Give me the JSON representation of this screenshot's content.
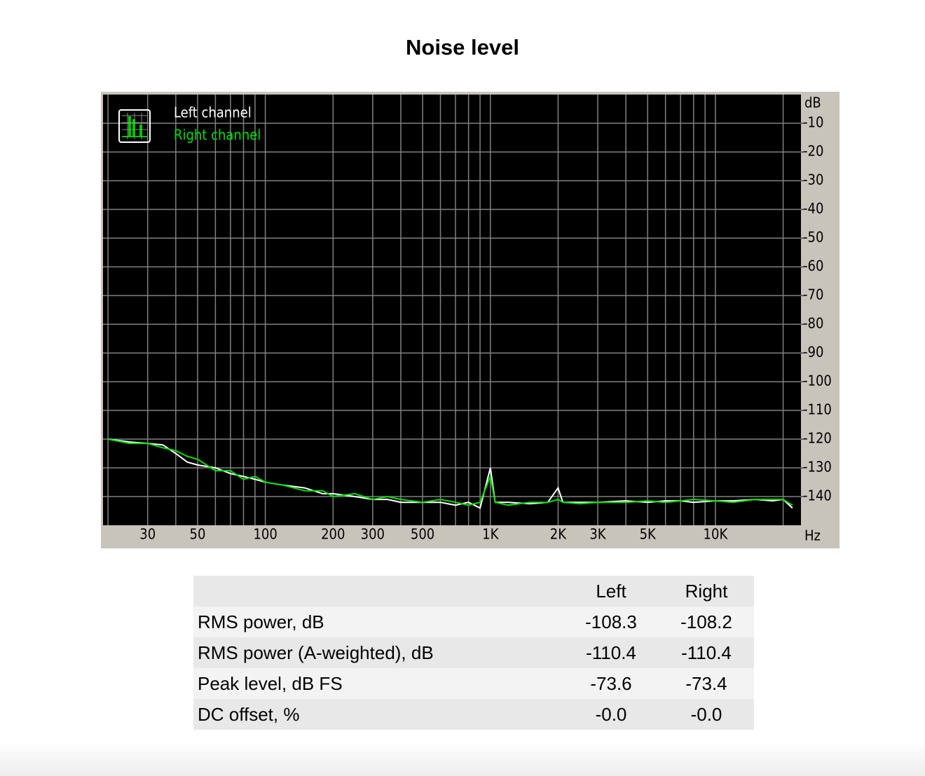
{
  "chart_data": {
    "type": "line",
    "title": "Noise level",
    "x_label": "Hz",
    "y_label": "dB",
    "log_x": true,
    "grid": true,
    "legend": "top-left",
    "background": "#000000",
    "xlim": [
      19,
      24000
    ],
    "ylim": [
      -150,
      0
    ],
    "xticks": [
      30,
      50,
      100,
      200,
      300,
      500,
      {
        "value": 1000,
        "label": "1K"
      },
      {
        "value": 2000,
        "label": "2K"
      },
      {
        "value": 3000,
        "label": "3K"
      },
      {
        "value": 5000,
        "label": "5K"
      },
      {
        "value": 10000,
        "label": "10K"
      }
    ],
    "xgrid_minor": [
      20,
      40,
      60,
      70,
      80,
      90,
      400,
      600,
      700,
      800,
      900,
      4000,
      6000,
      7000,
      8000,
      9000,
      20000
    ],
    "yticks": [
      -10,
      -20,
      -30,
      -40,
      -50,
      -60,
      -70,
      -80,
      -90,
      -100,
      -110,
      -120,
      -130,
      -140
    ],
    "x": [
      20,
      25,
      30,
      35,
      40,
      45,
      50,
      60,
      70,
      80,
      90,
      100,
      120,
      150,
      180,
      200,
      250,
      300,
      350,
      400,
      500,
      600,
      700,
      800,
      900,
      1000,
      1050,
      1200,
      1500,
      1800,
      2000,
      2100,
      2500,
      3000,
      4000,
      5000,
      6000,
      7000,
      8000,
      10000,
      12000,
      15000,
      18000,
      20000,
      22000
    ],
    "series": [
      {
        "name": "Left channel",
        "color": "#ffffff",
        "values": [
          -120,
          -121,
          -121.5,
          -122,
          -125,
          -128,
          -129,
          -130,
          -132,
          -133,
          -134,
          -135,
          -136,
          -137,
          -139,
          -139,
          -140,
          -141,
          -141,
          -142,
          -142,
          -142,
          -143,
          -142,
          -144,
          -130,
          -142,
          -142,
          -142.5,
          -142,
          -137,
          -142,
          -142,
          -142,
          -141.5,
          -142,
          -141.5,
          -141.5,
          -142,
          -141.5,
          -141.5,
          -141,
          -141.5,
          -141,
          -144
        ]
      },
      {
        "name": "Right channel",
        "color": "#00e000",
        "values": [
          -120,
          -121.5,
          -121.5,
          -123,
          -124,
          -126,
          -127,
          -131,
          -131,
          -134,
          -133,
          -135,
          -136,
          -138,
          -138,
          -140,
          -139,
          -141,
          -140,
          -141,
          -142,
          -141,
          -142,
          -143,
          -142,
          -133,
          -142,
          -143,
          -142,
          -142,
          -141,
          -142,
          -142.5,
          -142,
          -142,
          -141.5,
          -142,
          -141.5,
          -141,
          -141.5,
          -142,
          -141,
          -141,
          -141,
          -143
        ]
      }
    ]
  },
  "table": {
    "columns": [
      "Left",
      "Right"
    ],
    "rows": [
      {
        "label": "RMS power, dB",
        "values": [
          "-108.3",
          "-108.2"
        ]
      },
      {
        "label": "RMS power (A-weighted), dB",
        "values": [
          "-110.4",
          "-110.4"
        ]
      },
      {
        "label": "Peak level, dB FS",
        "values": [
          "-73.6",
          "-73.4"
        ]
      },
      {
        "label": "DC offset, %",
        "values": [
          "-0.0",
          "-0.0"
        ]
      }
    ]
  }
}
